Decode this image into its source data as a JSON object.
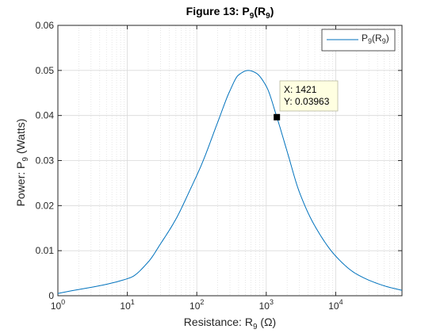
{
  "chart_data": {
    "type": "line",
    "title": {
      "main": "Figure 13: P",
      "sub1": "9",
      "mid": "(R",
      "sub2": "9",
      "end": ")"
    },
    "xlabel": {
      "main": "Resistance: R",
      "sub": "9",
      "unit": " (Ω)"
    },
    "ylabel": {
      "main": "Power: P",
      "sub": "9",
      "unit": " (Watts)"
    },
    "x_scale": "log",
    "xlim": [
      1,
      90000
    ],
    "ylim": [
      0,
      0.06
    ],
    "x_ticks": [
      {
        "value": 1,
        "base": "10",
        "exp": "0"
      },
      {
        "value": 10,
        "base": "10",
        "exp": "1"
      },
      {
        "value": 100,
        "base": "10",
        "exp": "2"
      },
      {
        "value": 1000,
        "base": "10",
        "exp": "3"
      },
      {
        "value": 10000,
        "base": "10",
        "exp": "4"
      }
    ],
    "y_ticks": [
      {
        "value": 0,
        "label": "0"
      },
      {
        "value": 0.01,
        "label": "0.01"
      },
      {
        "value": 0.02,
        "label": "0.02"
      },
      {
        "value": 0.03,
        "label": "0.03"
      },
      {
        "value": 0.04,
        "label": "0.04"
      },
      {
        "value": 0.05,
        "label": "0.05"
      },
      {
        "value": 0.06,
        "label": "0.06"
      }
    ],
    "grid": true,
    "legend_position": "top-right",
    "series": [
      {
        "name_main": "P",
        "name_sub1": "9",
        "name_mid": "(R",
        "name_sub2": "9",
        "name_end": ")",
        "color": "#0072bd",
        "x": [
          1,
          11,
          20,
          30,
          50,
          80,
          120,
          200,
          300,
          400,
          550,
          700,
          1000,
          1421,
          2000,
          3000,
          5000,
          10000,
          20000,
          50000,
          90000
        ],
        "y": [
          0.0005,
          0.004,
          0.0075,
          0.0115,
          0.017,
          0.0235,
          0.0295,
          0.0385,
          0.0455,
          0.049,
          0.05,
          0.0495,
          0.0465,
          0.03963,
          0.032,
          0.023,
          0.0155,
          0.0088,
          0.0048,
          0.0022,
          0.0012
        ]
      }
    ],
    "datatip": {
      "x": 1421,
      "y": 0.03963,
      "x_text": "X: 1421",
      "y_text": "Y: 0.03963"
    }
  }
}
